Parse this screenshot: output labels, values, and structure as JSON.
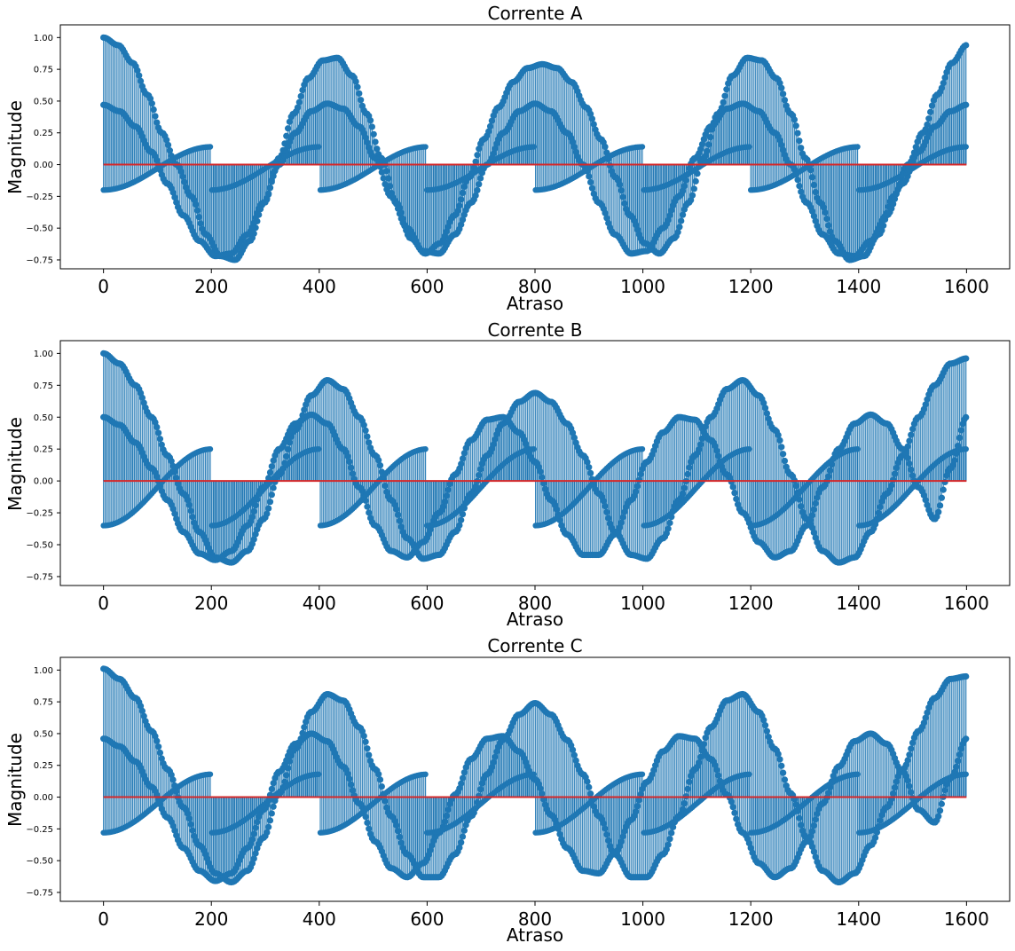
{
  "colors": {
    "stem": "#1f77b4",
    "baseline": "#d62728",
    "axes": "#000000",
    "background": "#ffffff"
  },
  "chart_data": [
    {
      "type": "stem",
      "title": "Corrente A",
      "xlabel": "Atraso",
      "ylabel": "Magnitude",
      "xlim": [
        -80,
        1680
      ],
      "ylim": [
        -0.82,
        1.1
      ],
      "xticks": [
        "0",
        "200",
        "400",
        "600",
        "800",
        "1000",
        "1200",
        "1400",
        "1600"
      ],
      "yticks": [
        "1.00",
        "0.75",
        "0.50",
        "0.25",
        "0.00",
        "−0.25",
        "−0.50",
        "−0.75"
      ],
      "grid": false,
      "legend": "none",
      "x_range": [
        0,
        1600
      ],
      "period": 400,
      "series": [
        {
          "values": [
            1.0,
            0.94,
            0.8,
            0.55,
            0.25,
            0.0,
            -0.25,
            -0.55,
            -0.72,
            -0.75,
            -0.6,
            -0.3,
            0.05,
            0.4,
            0.68,
            0.82,
            0.84,
            0.7,
            0.4,
            0.05,
            -0.3,
            -0.58,
            -0.7,
            -0.62,
            -0.4,
            -0.1,
            0.2,
            0.45,
            0.65,
            0.76,
            0.79,
            0.76,
            0.65,
            0.45,
            0.2,
            -0.1,
            -0.4,
            -0.62,
            -0.7,
            -0.58,
            -0.3,
            0.05,
            0.4,
            0.7,
            0.84,
            0.82,
            0.68,
            0.4,
            0.05,
            -0.3,
            -0.6,
            -0.75,
            -0.72,
            -0.55,
            -0.25,
            0.0,
            0.25,
            0.55,
            0.8,
            0.94
          ]
        },
        {
          "values": [
            0.47,
            0.42,
            0.3,
            0.1,
            -0.15,
            -0.4,
            -0.6,
            -0.72,
            -0.7,
            -0.55,
            -0.3,
            0.0,
            0.25,
            0.42,
            0.48,
            0.44,
            0.3,
            0.05,
            -0.25,
            -0.5,
            -0.68,
            -0.7,
            -0.55,
            -0.3,
            0.0,
            0.25,
            0.42,
            0.48,
            0.42,
            0.25,
            0.0,
            -0.3,
            -0.55,
            -0.7,
            -0.68,
            -0.5,
            -0.25,
            0.05,
            0.3,
            0.44,
            0.48,
            0.42,
            0.25,
            0.0,
            -0.3,
            -0.55,
            -0.7,
            -0.72,
            -0.6,
            -0.4,
            -0.15,
            0.1,
            0.3,
            0.42,
            0.47
          ]
        }
      ],
      "cloud_band": [
        -0.2,
        0.14
      ],
      "baseline": 0.0
    },
    {
      "type": "stem",
      "title": "Corrente B",
      "xlabel": "Atraso",
      "ylabel": "Magnitude",
      "xlim": [
        -80,
        1680
      ],
      "ylim": [
        -0.82,
        1.1
      ],
      "xticks": [
        "0",
        "200",
        "400",
        "600",
        "800",
        "1000",
        "1200",
        "1400",
        "1600"
      ],
      "yticks": [
        "1.00",
        "0.75",
        "0.50",
        "0.25",
        "0.00",
        "−0.25",
        "−0.50",
        "−0.75"
      ],
      "grid": false,
      "legend": "none",
      "x_range": [
        0,
        1600
      ],
      "period": 400,
      "series": [
        {
          "values": [
            1.0,
            0.92,
            0.75,
            0.5,
            0.2,
            -0.1,
            -0.4,
            -0.6,
            -0.64,
            -0.55,
            -0.3,
            0.05,
            0.4,
            0.67,
            0.79,
            0.72,
            0.5,
            0.2,
            -0.15,
            -0.45,
            -0.61,
            -0.58,
            -0.4,
            -0.1,
            0.2,
            0.45,
            0.62,
            0.69,
            0.62,
            0.45,
            0.2,
            -0.1,
            -0.4,
            -0.58,
            -0.61,
            -0.45,
            -0.15,
            0.2,
            0.5,
            0.72,
            0.79,
            0.67,
            0.4,
            0.05,
            -0.3,
            -0.55,
            -0.64,
            -0.6,
            -0.4,
            -0.1,
            0.2,
            0.5,
            0.75,
            0.92,
            0.96
          ]
        },
        {
          "values": [
            0.5,
            0.44,
            0.3,
            0.1,
            -0.15,
            -0.4,
            -0.57,
            -0.62,
            -0.55,
            -0.35,
            -0.05,
            0.25,
            0.45,
            0.52,
            0.45,
            0.25,
            -0.05,
            -0.35,
            -0.55,
            -0.6,
            -0.48,
            -0.25,
            0.05,
            0.32,
            0.48,
            0.5,
            0.38,
            0.15,
            -0.15,
            -0.42,
            -0.58,
            -0.58,
            -0.42,
            -0.15,
            0.15,
            0.38,
            0.5,
            0.48,
            0.32,
            0.05,
            -0.25,
            -0.48,
            -0.6,
            -0.55,
            -0.35,
            -0.05,
            0.25,
            0.45,
            0.52,
            0.45,
            0.25,
            -0.05,
            -0.3,
            0.1,
            0.5
          ]
        }
      ],
      "cloud_band": [
        -0.35,
        0.25
      ],
      "baseline": 0.0
    },
    {
      "type": "stem",
      "title": "Corrente C",
      "xlabel": "Atraso",
      "ylabel": "Magnitude",
      "xlim": [
        -80,
        1680
      ],
      "ylim": [
        -0.82,
        1.1
      ],
      "xticks": [
        "0",
        "200",
        "400",
        "600",
        "800",
        "1000",
        "1200",
        "1400",
        "1600"
      ],
      "yticks": [
        "1.00",
        "0.75",
        "0.50",
        "0.25",
        "0.00",
        "−0.25",
        "−0.50",
        "−0.75"
      ],
      "grid": false,
      "legend": "none",
      "x_range": [
        0,
        1600
      ],
      "period": 400,
      "series": [
        {
          "values": [
            1.01,
            0.93,
            0.78,
            0.52,
            0.22,
            -0.08,
            -0.38,
            -0.6,
            -0.67,
            -0.58,
            -0.32,
            0.03,
            0.38,
            0.67,
            0.81,
            0.76,
            0.55,
            0.22,
            -0.15,
            -0.45,
            -0.63,
            -0.63,
            -0.45,
            -0.15,
            0.18,
            0.45,
            0.65,
            0.74,
            0.65,
            0.45,
            0.18,
            -0.15,
            -0.45,
            -0.63,
            -0.63,
            -0.45,
            -0.15,
            0.22,
            0.55,
            0.76,
            0.81,
            0.67,
            0.38,
            0.03,
            -0.32,
            -0.58,
            -0.67,
            -0.6,
            -0.38,
            -0.08,
            0.22,
            0.52,
            0.78,
            0.93,
            0.95
          ]
        },
        {
          "values": [
            0.46,
            0.4,
            0.28,
            0.08,
            -0.16,
            -0.4,
            -0.58,
            -0.66,
            -0.6,
            -0.4,
            -0.1,
            0.2,
            0.42,
            0.5,
            0.44,
            0.24,
            -0.05,
            -0.35,
            -0.56,
            -0.63,
            -0.52,
            -0.28,
            0.02,
            0.3,
            0.46,
            0.48,
            0.36,
            0.14,
            -0.14,
            -0.4,
            -0.58,
            -0.6,
            -0.44,
            -0.18,
            0.12,
            0.36,
            0.48,
            0.46,
            0.3,
            0.02,
            -0.28,
            -0.52,
            -0.63,
            -0.56,
            -0.35,
            -0.05,
            0.24,
            0.44,
            0.5,
            0.42,
            0.2,
            -0.1,
            -0.2,
            0.15,
            0.46
          ]
        }
      ],
      "cloud_band": [
        -0.28,
        0.18
      ],
      "baseline": 0.0
    }
  ]
}
